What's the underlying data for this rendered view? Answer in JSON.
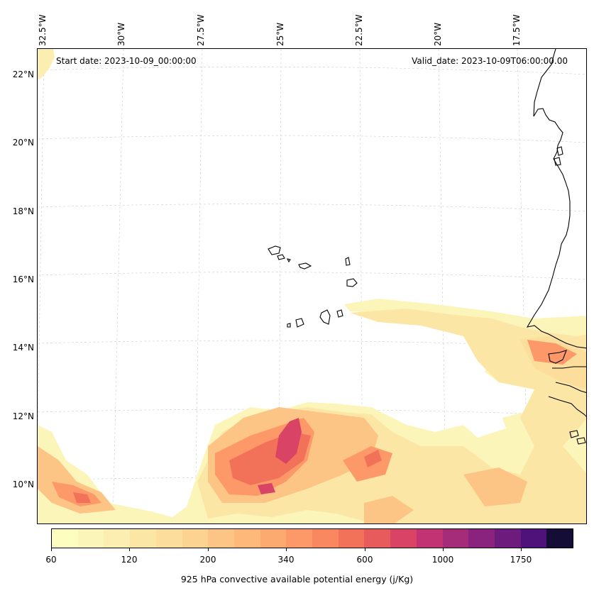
{
  "map": {
    "start_date_label": "Start date: 2023-10-09_00:00:00",
    "valid_date_label": "Valid_date: 2023-10-09T06:00:00.00",
    "longitude_ticks": [
      "32.5°W",
      "30°W",
      "27.5°W",
      "25°W",
      "22.5°W",
      "20°W",
      "17.5°W"
    ],
    "latitude_ticks": [
      "22°N",
      "20°N",
      "18°N",
      "16°N",
      "14°N",
      "12°N",
      "10°N"
    ],
    "coastline_color": "#000000",
    "gridline_color": "#cccccc"
  },
  "colorbar": {
    "label": "925 hPa convective available potential energy (j/Kg)",
    "tick_labels": [
      "60",
      "120",
      "200",
      "340",
      "600",
      "1000",
      "1750"
    ],
    "colors": [
      "#fcfdbf",
      "#fcf5b9",
      "#fbeeb0",
      "#fbe6a5",
      "#fcdd9c",
      "#fdd391",
      "#fdc585",
      "#fdb87a",
      "#fdaa70",
      "#fd9868",
      "#f98760",
      "#f27159",
      "#e85b5c",
      "#d94466",
      "#c13372",
      "#a52c79",
      "#8a237d",
      "#6d1c7d",
      "#4f127b",
      "#140e36"
    ]
  }
}
